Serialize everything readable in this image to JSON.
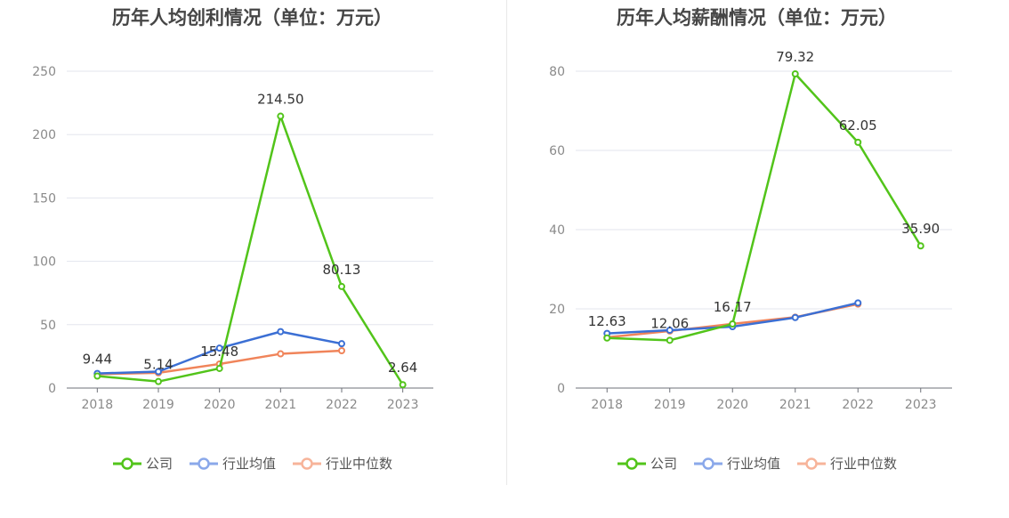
{
  "chart_data": [
    {
      "type": "line",
      "title": "历年人均创利情况（单位：万元）",
      "categories": [
        "2018",
        "2019",
        "2020",
        "2021",
        "2022",
        "2023"
      ],
      "ylim": [
        0,
        250
      ],
      "yticks": [
        0,
        50,
        100,
        150,
        200,
        250
      ],
      "grid": true,
      "legend_position": "bottom",
      "series": [
        {
          "name": "公司",
          "color": "#52c41a",
          "values": [
            9.44,
            5.14,
            15.48,
            214.5,
            80.13,
            2.64
          ],
          "labels": [
            "9.44",
            "5.14",
            "15.48",
            "214.50",
            "80.13",
            "2.64"
          ]
        },
        {
          "name": "行业均值",
          "color": "#3b6fd4",
          "values": [
            11.5,
            13.0,
            31.5,
            44.5,
            35.0,
            null
          ]
        },
        {
          "name": "行业中位数",
          "color": "#f0845a",
          "values": [
            11.0,
            12.0,
            19.0,
            27.0,
            29.5,
            null
          ]
        }
      ]
    },
    {
      "type": "line",
      "title": "历年人均薪酬情况（单位：万元）",
      "categories": [
        "2018",
        "2019",
        "2020",
        "2021",
        "2022",
        "2023"
      ],
      "ylim": [
        0,
        80
      ],
      "yticks": [
        0,
        20,
        40,
        60,
        80
      ],
      "grid": true,
      "legend_position": "bottom",
      "series": [
        {
          "name": "公司",
          "color": "#52c41a",
          "values": [
            12.63,
            12.06,
            16.17,
            79.32,
            62.05,
            35.9
          ],
          "labels": [
            "12.63",
            "12.06",
            "16.17",
            "79.32",
            "62.05",
            "35.90"
          ]
        },
        {
          "name": "行业均值",
          "color": "#3b6fd4",
          "values": [
            13.8,
            14.6,
            15.5,
            17.8,
            21.5,
            null
          ]
        },
        {
          "name": "行业中位数",
          "color": "#f0845a",
          "values": [
            12.8,
            14.4,
            16.2,
            17.9,
            21.2,
            null
          ]
        }
      ]
    }
  ],
  "legend_labels": [
    "公司",
    "行业均值",
    "行业中位数"
  ]
}
